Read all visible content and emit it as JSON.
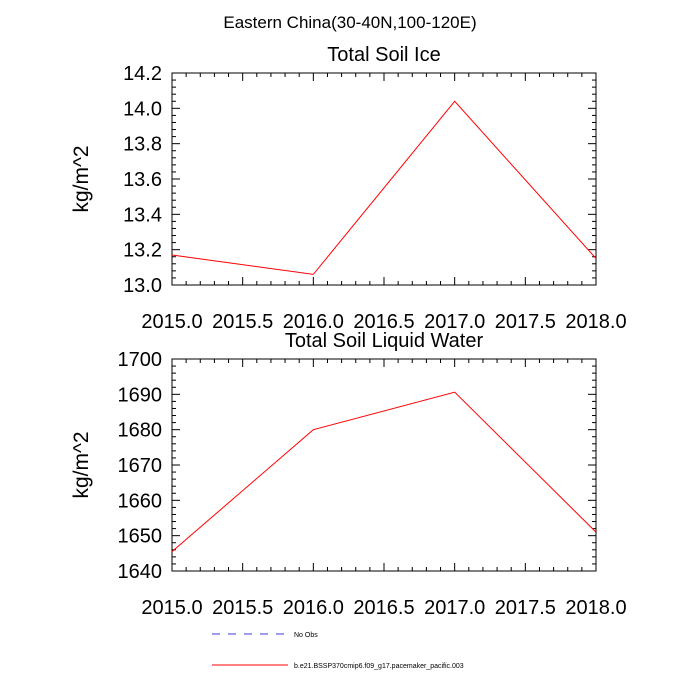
{
  "figure_title": "Eastern China(30-40N,100-120E)",
  "legend": [
    {
      "label": "No Obs",
      "color": "#3b3bd6",
      "dash": true
    },
    {
      "label": "b.e21.BSSP370cmip6.f09_g17.pacemaker_pacific.003",
      "color": "#ff0000",
      "dash": false
    }
  ],
  "chart_data": [
    {
      "type": "line",
      "title": "Total Soil Ice",
      "xlabel": "",
      "ylabel": "kg/m^2",
      "xlim": [
        2015.0,
        2018.0
      ],
      "ylim": [
        13.0,
        14.2
      ],
      "xticks": [
        "2015.0",
        "2015.5",
        "2016.0",
        "2016.5",
        "2017.0",
        "2017.5",
        "2018.0"
      ],
      "yticks": [
        "13.0",
        "13.2",
        "13.4",
        "13.6",
        "13.8",
        "14.0",
        "14.2"
      ],
      "series": [
        {
          "name": "b.e21.BSSP370cmip6.f09_g17.pacemaker_pacific.003",
          "color": "#ff0000",
          "x": [
            2015,
            2016,
            2017,
            2018
          ],
          "values": [
            13.17,
            13.06,
            14.04,
            13.15
          ]
        }
      ]
    },
    {
      "type": "line",
      "title": "Total Soil Liquid Water",
      "xlabel": "",
      "ylabel": "kg/m^2",
      "xlim": [
        2015.0,
        2018.0
      ],
      "ylim": [
        1640,
        1700
      ],
      "xticks": [
        "2015.0",
        "2015.5",
        "2016.0",
        "2016.5",
        "2017.0",
        "2017.5",
        "2018.0"
      ],
      "yticks": [
        "1640",
        "1650",
        "1660",
        "1670",
        "1680",
        "1690",
        "1700"
      ],
      "series": [
        {
          "name": "b.e21.BSSP370cmip6.f09_g17.pacemaker_pacific.003",
          "color": "#ff0000",
          "x": [
            2015,
            2016,
            2017,
            2018
          ],
          "values": [
            1645.5,
            1680.0,
            1690.6,
            1651.0
          ]
        }
      ]
    }
  ]
}
